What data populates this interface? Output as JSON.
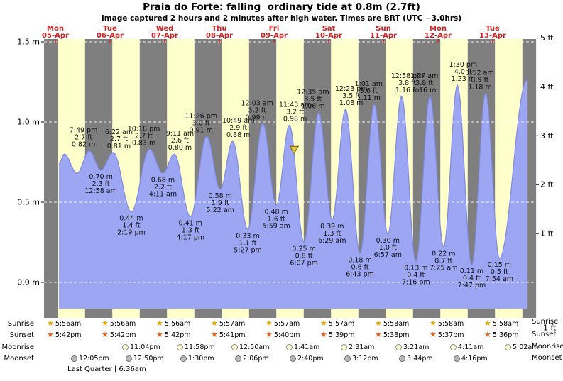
{
  "title": "Praia do Forte: falling  ordinary tide at 0.8m (2.7ft)",
  "subtitle": "Image captured 2 hours and 2 minutes after high water. Times are BRT (UTC −3.0hrs)",
  "colors": {
    "night_band": "#7f7f7f",
    "day_band": "#ffffcc",
    "tide_fill": "#9da6f2",
    "tide_stroke": "#7f89e0",
    "date_red": "#cc2222",
    "grid": "rgba(255,255,255,0.85)",
    "sunrise_star": "#dfa800",
    "sunset_star": "#e06426",
    "moonrise_disc": "#ffffd6",
    "moonset_disc": "#b9b9b9",
    "marker_fill": "#e8c83f"
  },
  "icons": {
    "sunrise": "star",
    "sunset": "star",
    "moonrise": "circle-light",
    "moonset": "circle-gray",
    "star_glyph": "★",
    "current_marker": "triangle-down"
  },
  "chart_data": {
    "type": "area",
    "title": "Praia do Forte tide height",
    "x_range_hours": [
      0,
      216
    ],
    "ylim_m": [
      -0.22,
      1.55
    ],
    "bands": "gray = night 18:00–06:00, yellow = day 06:00–18:00",
    "days": [
      {
        "dow": "Mon",
        "date": "05-Apr"
      },
      {
        "dow": "Tue",
        "date": "06-Apr"
      },
      {
        "dow": "Wed",
        "date": "07-Apr"
      },
      {
        "dow": "Thu",
        "date": "08-Apr"
      },
      {
        "dow": "Fri",
        "date": "09-Apr"
      },
      {
        "dow": "Sat",
        "date": "10-Apr"
      },
      {
        "dow": "Sun",
        "date": "11-Apr"
      },
      {
        "dow": "Mon",
        "date": "12-Apr"
      },
      {
        "dow": "Tue",
        "date": "13-Apr"
      }
    ],
    "left_ticks": [
      {
        "label": "1.5 m",
        "m": 1.5
      },
      {
        "label": "1.0 m",
        "m": 1.0
      },
      {
        "label": "0.5 m",
        "m": 0.5
      },
      {
        "label": "0.0 m",
        "m": 0.0
      }
    ],
    "right_ticks": [
      {
        "label": "5 ft",
        "ft": 5
      },
      {
        "label": "4 ft",
        "ft": 4
      },
      {
        "label": "3 ft",
        "ft": 3
      },
      {
        "label": "2 ft",
        "ft": 2
      },
      {
        "label": "1 ft",
        "ft": 1
      },
      {
        "label": "-1 ft",
        "ft": -1
      }
    ],
    "tide_events": [
      {
        "t": 6.5,
        "height_m": 0.74,
        "type": "edge"
      },
      {
        "t": 8.92,
        "height_m": 0.8,
        "type": "high"
      },
      {
        "t": 14.5,
        "height_m": 0.68,
        "type": "low"
      },
      {
        "t": 19.82,
        "height_m": 0.82,
        "type": "high",
        "day": "Mon 05",
        "time": "7:49 pm",
        "ft": "2.7 ft",
        "m": "0.82 m"
      },
      {
        "t": 24.97,
        "height_m": 0.7,
        "type": "low",
        "day": "Tue 06",
        "time": "12:58 am",
        "ft": "2.3 ft",
        "m": "0.70 m"
      },
      {
        "t": 30.37,
        "height_m": 0.81,
        "type": "high",
        "day": "Tue 06",
        "time": "6:22 am",
        "ft": "2.7 ft",
        "m": "0.81 m"
      },
      {
        "t": 38.32,
        "height_m": 0.44,
        "type": "low",
        "day": "Tue 06",
        "time": "2:19 pm",
        "ft": "1.4 ft",
        "m": "0.44 m"
      },
      {
        "t": 46.3,
        "height_m": 0.83,
        "type": "high",
        "day": "Tue 06",
        "time": "10:18 pm",
        "ft": "2.7 ft",
        "m": "0.83 m"
      },
      {
        "t": 52.18,
        "height_m": 0.68,
        "type": "low",
        "day": "Wed 07",
        "time": "4:11 am",
        "ft": "2.2 ft",
        "m": "0.68 m"
      },
      {
        "t": 57.18,
        "height_m": 0.8,
        "type": "high",
        "day": "Wed 07",
        "time": "9:11 am",
        "ft": "2.6 ft",
        "m": "0.80 m"
      },
      {
        "t": 64.28,
        "height_m": 0.41,
        "type": "low",
        "day": "Wed 07",
        "time": "4:17 pm",
        "ft": "1.3 ft",
        "m": "0.41 m"
      },
      {
        "t": 71.43,
        "height_m": 0.91,
        "type": "high",
        "day": "Wed 07",
        "time": "11:26 pm",
        "ft": "3.0 ft",
        "m": "0.91 m"
      },
      {
        "t": 77.37,
        "height_m": 0.58,
        "type": "low",
        "day": "Thu 08",
        "time": "5:22 am",
        "ft": "1.9 ft",
        "m": "0.58 m"
      },
      {
        "t": 82.82,
        "height_m": 0.88,
        "type": "high",
        "day": "Thu 08",
        "time": "10:49 am",
        "ft": "2.9 ft",
        "m": "0.88 m"
      },
      {
        "t": 89.45,
        "height_m": 0.33,
        "type": "low",
        "day": "Thu 08",
        "time": "5:27 pm",
        "ft": "1.1 ft",
        "m": "0.33 m"
      },
      {
        "t": 96.05,
        "height_m": 0.99,
        "type": "high",
        "day": "Fri 09",
        "time": "12:03 am",
        "ft": "3.2 ft",
        "m": "0.99 m"
      },
      {
        "t": 101.98,
        "height_m": 0.48,
        "type": "low",
        "day": "Fri 09",
        "time": "5:59 am",
        "ft": "1.6 ft",
        "m": "0.48 m"
      },
      {
        "t": 107.72,
        "height_m": 0.98,
        "type": "high",
        "day": "Fri 09",
        "time": "11:43 am",
        "ft": "3.2 ft",
        "m": "0.98 m"
      },
      {
        "t": 114.12,
        "height_m": 0.25,
        "type": "low",
        "day": "Fri 09",
        "time": "6:07 pm",
        "ft": "0.8 ft",
        "m": "0.25 m"
      },
      {
        "t": 120.58,
        "height_m": 1.06,
        "type": "high",
        "day": "Sat 10",
        "time": "12:35 am",
        "ft": "3.5 ft",
        "m": "1.06 m"
      },
      {
        "t": 126.48,
        "height_m": 0.39,
        "type": "low",
        "day": "Sat 10",
        "time": "6:29 am",
        "ft": "1.3 ft",
        "m": "0.39 m"
      },
      {
        "t": 132.38,
        "height_m": 1.08,
        "type": "high",
        "day": "Sat 10",
        "time": "12:23 pm",
        "ft": "3.5 ft",
        "m": "1.08 m"
      },
      {
        "t": 138.72,
        "height_m": 0.18,
        "type": "low",
        "day": "Sat 10",
        "time": "6:43 pm",
        "ft": "0.6 ft",
        "m": "0.18 m"
      },
      {
        "t": 145.02,
        "height_m": 1.11,
        "type": "high",
        "day": "Sun 11",
        "time": "1:01 am",
        "ft": "3.6 ft",
        "m": "1.11 m"
      },
      {
        "t": 150.95,
        "height_m": 0.3,
        "type": "low",
        "day": "Sun 11",
        "time": "6:57 am",
        "ft": "1.0 ft",
        "m": "0.30 m"
      },
      {
        "t": 156.97,
        "height_m": 1.16,
        "type": "high",
        "day": "Sun 11",
        "time": "12:58 pm",
        "ft": "3.8 ft",
        "m": "1.16 m"
      },
      {
        "t": 163.27,
        "height_m": 0.13,
        "type": "low",
        "day": "Sun 11",
        "time": "7:16 pm",
        "ft": "0.4 ft",
        "m": "0.13 m"
      },
      {
        "t": 169.45,
        "height_m": 1.16,
        "type": "high",
        "day": "Mon 12",
        "time": "1:27 am",
        "ft": "3.8 ft",
        "m": "1.16 m"
      },
      {
        "t": 175.42,
        "height_m": 0.22,
        "type": "low",
        "day": "Mon 12",
        "time": "7:25 am",
        "ft": "0.7 ft",
        "m": "0.22 m"
      },
      {
        "t": 181.5,
        "height_m": 1.23,
        "type": "high",
        "day": "Mon 12",
        "time": "1:30 pm",
        "ft": "4.0 ft",
        "m": "1.23 m"
      },
      {
        "t": 187.78,
        "height_m": 0.11,
        "type": "low",
        "day": "Mon 12",
        "time": "7:47 pm",
        "ft": "0.4 ft",
        "m": "0.11 m"
      },
      {
        "t": 193.87,
        "height_m": 1.18,
        "type": "high",
        "day": "Tue 13",
        "time": "1:52 am",
        "ft": "3.9 ft",
        "m": "1.18 m"
      },
      {
        "t": 199.9,
        "height_m": 0.15,
        "type": "low",
        "day": "Tue 13",
        "time": "7:54 am",
        "ft": "0.5 ft",
        "m": "0.15 m"
      },
      {
        "t": 212.0,
        "height_m": 1.26,
        "type": "edge"
      }
    ],
    "current_time_marker": {
      "hours_from_start": 109.8,
      "height_m": 0.8,
      "note": "falling tide at 0.8m (2.7ft)"
    }
  },
  "astro": {
    "row_labels": [
      "Sunrise",
      "Sunset",
      "Moonrise",
      "Moonset"
    ],
    "sunrise": [
      "5:56am",
      "5:56am",
      "5:56am",
      "5:57am",
      "5:57am",
      "5:57am",
      "5:58am",
      "5:58am",
      "5:58am"
    ],
    "sunset": [
      "5:42pm",
      "5:42pm",
      "5:42pm",
      "5:41pm",
      "5:40pm",
      "5:39pm",
      "5:38pm",
      "5:37pm",
      "5:36pm"
    ],
    "moonrise": [
      "11:04pm",
      "11:58pm",
      "12:50am",
      "1:41am",
      "2:31am",
      "3:21am",
      "4:11am",
      "5:02am"
    ],
    "moonset": [
      "12:05pm",
      "12:50pm",
      "1:30pm",
      "2:06pm",
      "2:40pm",
      "3:12pm",
      "3:44pm",
      "4:16pm"
    ],
    "moon_phase": "Last Quarter | 6:36am"
  }
}
